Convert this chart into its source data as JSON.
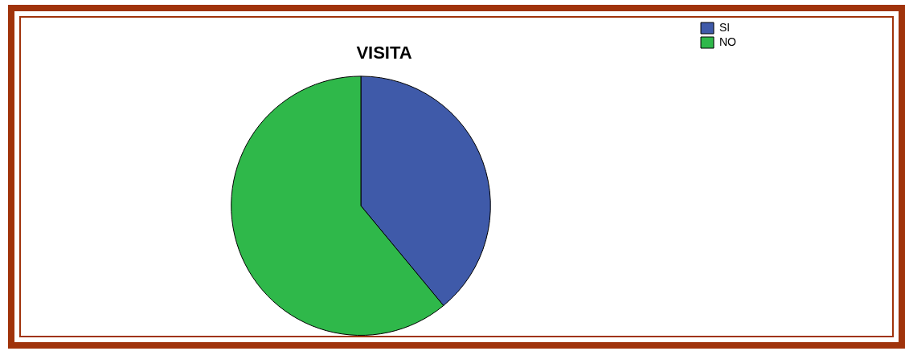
{
  "chart_data": {
    "type": "pie",
    "title": "VISITA",
    "categories": [
      "SI",
      "NO"
    ],
    "values": [
      39,
      61
    ],
    "colors": [
      "#3f5aa9",
      "#2fb84a"
    ],
    "legend": "top right"
  }
}
